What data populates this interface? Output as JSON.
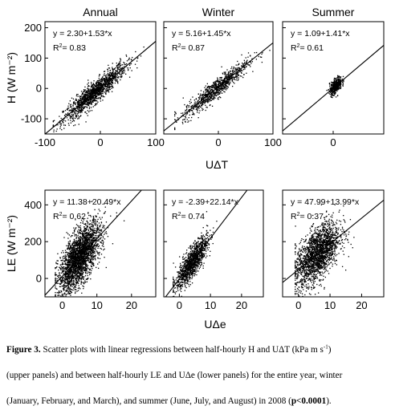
{
  "chart_data": [
    {
      "type": "scatter",
      "title": "Annual",
      "xlim": [
        -100,
        100
      ],
      "ylim": [
        -150,
        220
      ],
      "xticks": [
        "-100",
        "0",
        "100"
      ],
      "yticks": [
        "200",
        "100",
        "0",
        "-100"
      ],
      "ylabel": "H (W m⁻²)",
      "equation": "y = 2.30+1.53*x",
      "r2_label": "R",
      "r2_value": "= 0.83",
      "fit": {
        "intercept": 2.3,
        "slope": 1.53
      },
      "cloud": {
        "x_range": [
          -85,
          100
        ],
        "x_center": -10,
        "x_sd": 28,
        "noise_sd": 18
      }
    },
    {
      "type": "scatter",
      "title": "Winter",
      "xlim": [
        -100,
        100
      ],
      "ylim": [
        -150,
        220
      ],
      "xticks": [
        "0",
        "100"
      ],
      "yticks": [],
      "equation": "y = 5.16+1.45*x",
      "r2_label": "R",
      "r2_value": "= 0.87",
      "fit": {
        "intercept": 5.16,
        "slope": 1.45
      },
      "cloud": {
        "x_range": [
          -80,
          95
        ],
        "x_center": -5,
        "x_sd": 30,
        "noise_sd": 16
      }
    },
    {
      "type": "scatter",
      "title": "Summer",
      "xlim": [
        -100,
        100
      ],
      "ylim": [
        -150,
        220
      ],
      "xticks": [
        "0"
      ],
      "yticks": [],
      "equation": "y = 1.09+1.41*x",
      "r2_label": "R",
      "r2_value": "= 0.61",
      "fit": {
        "intercept": 1.09,
        "slope": 1.41
      },
      "cloud": {
        "x_range": [
          -20,
          30
        ],
        "x_center": 5,
        "x_sd": 6,
        "noise_sd": 12
      }
    },
    {
      "type": "scatter",
      "title": "",
      "xlim": [
        -5,
        27
      ],
      "ylim": [
        -100,
        480
      ],
      "xticks": [
        "0",
        "10",
        "20"
      ],
      "yticks": [
        "400",
        "200",
        "0"
      ],
      "ylabel": "LE (W m⁻²)",
      "equation": "y = 11.38+20.49*x",
      "r2_label": "R",
      "r2_value": "= 0.62",
      "fit": {
        "intercept": 11.38,
        "slope": 20.49
      },
      "cloud": {
        "x_range": [
          -2,
          18
        ],
        "x_center": 5,
        "x_sd": 3,
        "noise_sd": 70
      }
    },
    {
      "type": "scatter",
      "title": "",
      "xlim": [
        -5,
        27
      ],
      "ylim": [
        -100,
        480
      ],
      "xticks": [
        "0",
        "10",
        "20"
      ],
      "yticks": [],
      "equation": "y = -2.39+22.14*x",
      "r2_label": "R",
      "r2_value": "= 0.74",
      "fit": {
        "intercept": -2.39,
        "slope": 22.14
      },
      "cloud": {
        "x_range": [
          -2,
          12
        ],
        "x_center": 4,
        "x_sd": 2.5,
        "noise_sd": 40
      }
    },
    {
      "type": "scatter",
      "title": "",
      "xlim": [
        -5,
        27
      ],
      "ylim": [
        -100,
        480
      ],
      "xticks": [
        "0",
        "10",
        "20"
      ],
      "yticks": [],
      "equation": "y = 47.99+13.99*x",
      "r2_label": "R",
      "r2_value": "= 0.37",
      "fit": {
        "intercept": 47.99,
        "slope": 13.99
      },
      "cloud": {
        "x_range": [
          -1,
          20
        ],
        "x_center": 6,
        "x_sd": 3.5,
        "noise_sd": 70
      }
    }
  ],
  "xlabel_top": "UΔT",
  "xlabel_bottom": "UΔe",
  "caption": {
    "label": "Figure 3.",
    "line1": "Scatter plots with linear regressions between half-hourly H and UΔT (kPa m s",
    "line1_sup": "-1",
    "line1_end": ")",
    "line2": "(upper panels) and between half-hourly LE and UΔe (lower panels) for the entire year, winter",
    "line3": "(January, February, and March), and summer (June, July, and August) in 2008 (",
    "line3_bold": "p<0.0001",
    "line3_end": ")."
  }
}
